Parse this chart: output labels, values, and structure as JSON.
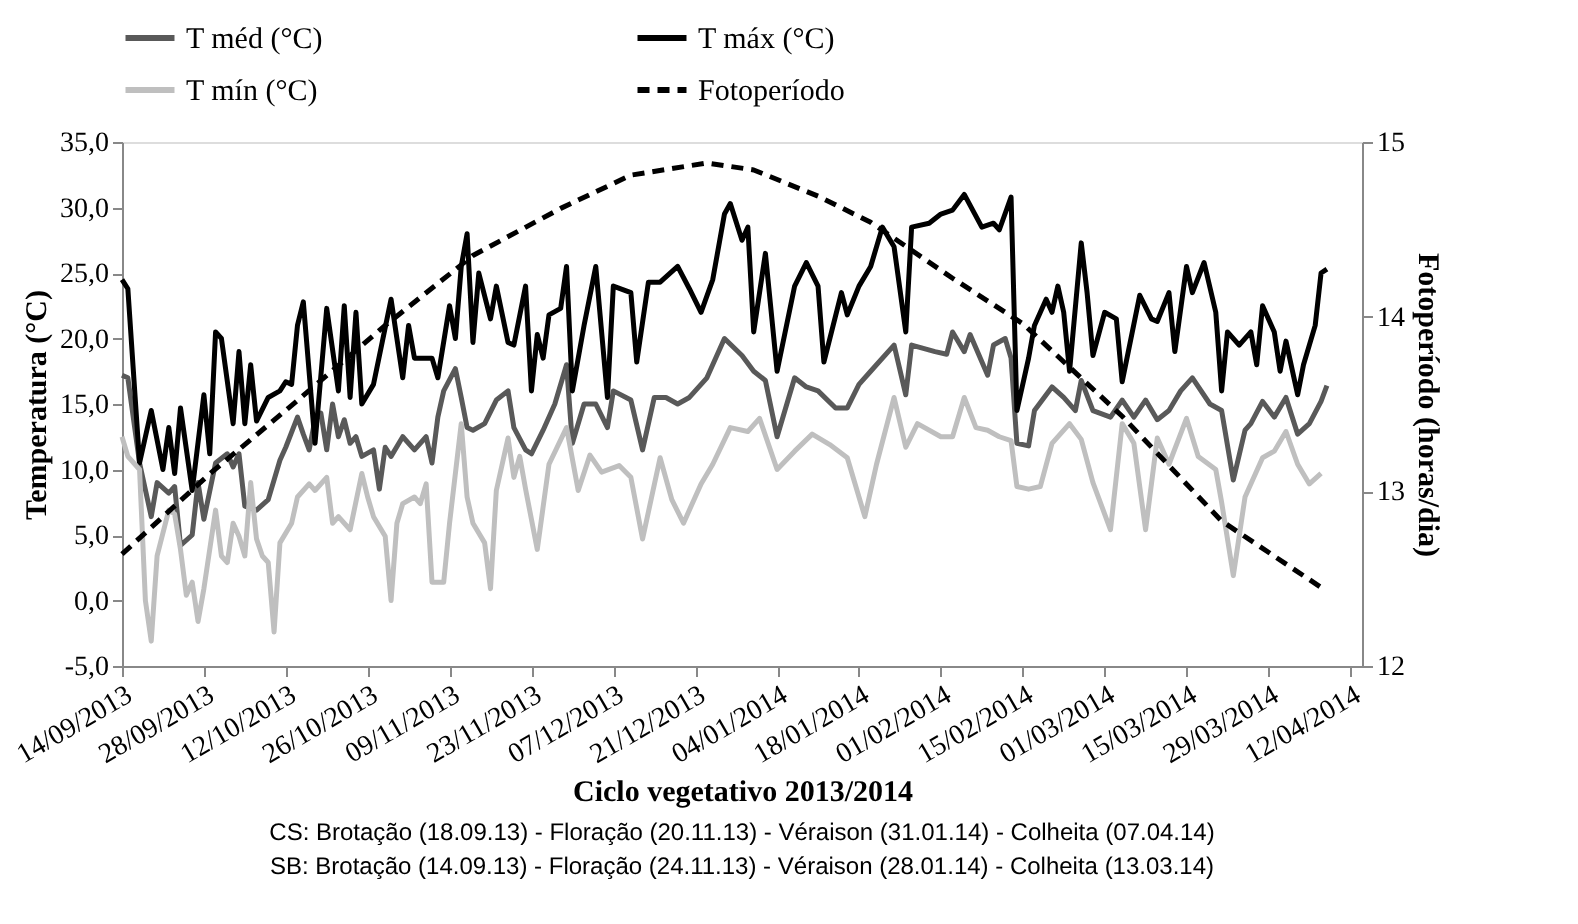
{
  "chart_data": {
    "type": "line",
    "xlabel": "Ciclo vegetativo 2013/2014",
    "ylabel": "Temperatura (°C)",
    "y2label": "Fotoperíodo (horas/dia)",
    "annotations": [
      "CS: Brotação (18.09.13)   -  Floração (20.11.13)   -   Véraison (31.01.14)   -   Colheita (07.04.14)",
      "SB: Brotação (14.09.13)   -  Floração (24.11.13)   -   Véraison (28.01.14)   -   Colheita (13.03.14)"
    ],
    "legend": "top",
    "grid": false,
    "xlim": [
      "2013-09-14",
      "2014-04-14"
    ],
    "xticks": [
      {
        "value": "2013-09-14",
        "label": "14/09/2013"
      },
      {
        "value": "2013-09-28",
        "label": "28/09/2013"
      },
      {
        "value": "2013-10-12",
        "label": "12/10/2013"
      },
      {
        "value": "2013-10-26",
        "label": "26/10/2013"
      },
      {
        "value": "2013-11-09",
        "label": "09/11/2013"
      },
      {
        "value": "2013-11-23",
        "label": "23/11/2013"
      },
      {
        "value": "2013-12-07",
        "label": "07/12/2013"
      },
      {
        "value": "2013-12-21",
        "label": "21/12/2013"
      },
      {
        "value": "2014-01-04",
        "label": "04/01/2014"
      },
      {
        "value": "2014-01-18",
        "label": "18/01/2014"
      },
      {
        "value": "2014-02-01",
        "label": "01/02/2014"
      },
      {
        "value": "2014-02-15",
        "label": "15/02/2014"
      },
      {
        "value": "2014-03-01",
        "label": "01/03/2014"
      },
      {
        "value": "2014-03-15",
        "label": "15/03/2014"
      },
      {
        "value": "2014-03-29",
        "label": "29/03/2014"
      },
      {
        "value": "2014-04-12",
        "label": "12/04/2014"
      }
    ],
    "ylim": [
      -5,
      35
    ],
    "yticks": [
      {
        "value": -5,
        "label": "-5,0"
      },
      {
        "value": 0,
        "label": "0,0"
      },
      {
        "value": 5,
        "label": "5,0"
      },
      {
        "value": 10,
        "label": "10,0"
      },
      {
        "value": 15,
        "label": "15,0"
      },
      {
        "value": 20,
        "label": "20,0"
      },
      {
        "value": 25,
        "label": "25,0"
      },
      {
        "value": 30,
        "label": "30,0"
      },
      {
        "value": 35,
        "label": "35,0"
      }
    ],
    "y2lim": [
      12,
      15
    ],
    "y2ticks": [
      12,
      13,
      14,
      15
    ],
    "series": [
      {
        "name": "T méd (°C)",
        "color": "#595959",
        "line_style": "solid",
        "x": [
          "2013-09-14",
          "2013-09-15",
          "2013-09-17",
          "2013-09-19",
          "2013-09-20",
          "2013-09-22",
          "2013-09-23",
          "2013-09-24",
          "2013-09-26",
          "2013-09-27",
          "2013-09-28",
          "2013-09-30",
          "2013-10-02",
          "2013-10-03",
          "2013-10-04",
          "2013-10-05",
          "2013-10-07",
          "2013-10-09",
          "2013-10-11",
          "2013-10-12",
          "2013-10-14",
          "2013-10-15",
          "2013-10-16",
          "2013-10-17",
          "2013-10-18",
          "2013-10-19",
          "2013-10-20",
          "2013-10-21",
          "2013-10-22",
          "2013-10-23",
          "2013-10-24",
          "2013-10-25",
          "2013-10-27",
          "2013-10-28",
          "2013-10-29",
          "2013-10-30",
          "2013-11-01",
          "2013-11-03",
          "2013-11-05",
          "2013-11-06",
          "2013-11-07",
          "2013-11-08",
          "2013-11-10",
          "2013-11-11",
          "2013-11-12",
          "2013-11-13",
          "2013-11-15",
          "2013-11-17",
          "2013-11-19",
          "2013-11-20",
          "2013-11-22",
          "2013-11-23",
          "2013-11-25",
          "2013-11-27",
          "2013-11-29",
          "2013-11-30",
          "2013-12-02",
          "2013-12-04",
          "2013-12-06",
          "2013-12-07",
          "2013-12-10",
          "2013-12-12",
          "2013-12-14",
          "2013-12-16",
          "2013-12-18",
          "2013-12-20",
          "2013-12-23",
          "2013-12-26",
          "2013-12-29",
          "2013-12-31",
          "2014-01-02",
          "2014-01-04",
          "2014-01-07",
          "2014-01-09",
          "2014-01-11",
          "2014-01-14",
          "2014-01-16",
          "2014-01-18",
          "2014-01-20",
          "2014-01-24",
          "2014-01-26",
          "2014-01-27",
          "2014-01-31",
          "2014-02-02",
          "2014-02-03",
          "2014-02-05",
          "2014-02-06",
          "2014-02-09",
          "2014-02-10",
          "2014-02-12",
          "2014-02-13",
          "2014-02-14",
          "2014-02-16",
          "2014-02-17",
          "2014-02-20",
          "2014-02-22",
          "2014-02-24",
          "2014-02-25",
          "2014-02-27",
          "2014-03-02",
          "2014-03-04",
          "2014-03-06",
          "2014-03-08",
          "2014-03-10",
          "2014-03-12",
          "2014-03-14",
          "2014-03-16",
          "2014-03-19",
          "2014-03-21",
          "2014-03-23",
          "2014-03-25",
          "2014-03-26",
          "2014-03-28",
          "2014-03-30",
          "2014-04-01",
          "2014-04-03",
          "2014-04-05",
          "2014-04-07",
          "2014-04-08"
        ],
        "values": [
          17.2,
          17.0,
          10.5,
          6.4,
          9.0,
          8.2,
          8.7,
          4.2,
          5.0,
          9.0,
          6.2,
          10.5,
          11.2,
          10.2,
          11.2,
          7.2,
          6.9,
          7.7,
          10.7,
          11.7,
          14.0,
          12.7,
          11.5,
          13.8,
          14.3,
          11.5,
          15.0,
          12.5,
          13.8,
          12.0,
          12.5,
          11.0,
          11.5,
          8.5,
          11.7,
          11.0,
          12.5,
          11.5,
          12.5,
          10.5,
          14.0,
          16.0,
          17.7,
          15.5,
          13.2,
          13.0,
          13.5,
          15.3,
          16.0,
          13.2,
          11.5,
          11.2,
          13.0,
          15.0,
          18.0,
          12.0,
          15.0,
          15.0,
          13.2,
          16.0,
          15.3,
          11.5,
          15.5,
          15.5,
          15.0,
          15.5,
          17.0,
          20.0,
          18.7,
          17.5,
          16.8,
          12.5,
          17.0,
          16.3,
          16.0,
          14.7,
          14.7,
          16.5,
          17.5,
          19.5,
          15.7,
          19.5,
          19.0,
          18.8,
          20.5,
          19.0,
          20.3,
          17.2,
          19.5,
          20.0,
          18.5,
          12.0,
          11.8,
          14.5,
          16.3,
          15.5,
          14.5,
          16.8,
          14.5,
          14.0,
          15.3,
          14.0,
          15.3,
          13.8,
          14.5,
          16.0,
          17.0,
          15.0,
          14.5,
          9.2,
          13.0,
          13.5,
          15.2,
          14.0,
          15.5,
          12.7,
          13.5,
          15.2,
          16.4
        ]
      },
      {
        "name": "T máx (°C)",
        "color": "#000000",
        "line_style": "solid",
        "x": [
          "2013-09-14",
          "2013-09-15",
          "2013-09-17",
          "2013-09-19",
          "2013-09-21",
          "2013-09-22",
          "2013-09-23",
          "2013-09-24",
          "2013-09-26",
          "2013-09-28",
          "2013-09-29",
          "2013-09-30",
          "2013-10-01",
          "2013-10-03",
          "2013-10-04",
          "2013-10-05",
          "2013-10-06",
          "2013-10-07",
          "2013-10-09",
          "2013-10-11",
          "2013-10-12",
          "2013-10-13",
          "2013-10-14",
          "2013-10-15",
          "2013-10-17",
          "2013-10-19",
          "2013-10-21",
          "2013-10-22",
          "2013-10-23",
          "2013-10-24",
          "2013-10-25",
          "2013-10-27",
          "2013-10-30",
          "2013-11-01",
          "2013-11-02",
          "2013-11-03",
          "2013-11-06",
          "2013-11-07",
          "2013-11-09",
          "2013-11-10",
          "2013-11-11",
          "2013-11-12",
          "2013-11-13",
          "2013-11-14",
          "2013-11-16",
          "2013-11-17",
          "2013-11-19",
          "2013-11-20",
          "2013-11-22",
          "2013-11-23",
          "2013-11-24",
          "2013-11-25",
          "2013-11-26",
          "2013-11-28",
          "2013-11-29",
          "2013-11-30",
          "2013-12-02",
          "2013-12-04",
          "2013-12-06",
          "2013-12-07",
          "2013-12-10",
          "2013-12-11",
          "2013-12-13",
          "2013-12-15",
          "2013-12-18",
          "2013-12-20",
          "2013-12-22",
          "2013-12-24",
          "2013-12-26",
          "2013-12-27",
          "2013-12-29",
          "2013-12-30",
          "2013-12-31",
          "2014-01-02",
          "2014-01-04",
          "2014-01-07",
          "2014-01-09",
          "2014-01-11",
          "2014-01-12",
          "2014-01-15",
          "2014-01-16",
          "2014-01-18",
          "2014-01-20",
          "2014-01-22",
          "2014-01-24",
          "2014-01-26",
          "2014-01-27",
          "2014-01-30",
          "2014-02-01",
          "2014-02-03",
          "2014-02-05",
          "2014-02-08",
          "2014-02-10",
          "2014-02-11",
          "2014-02-13",
          "2014-02-14",
          "2014-02-16",
          "2014-02-17",
          "2014-02-19",
          "2014-02-20",
          "2014-02-21",
          "2014-02-22",
          "2014-02-23",
          "2014-02-25",
          "2014-02-26",
          "2014-02-27",
          "2014-03-01",
          "2014-03-03",
          "2014-03-04",
          "2014-03-07",
          "2014-03-09",
          "2014-03-10",
          "2014-03-12",
          "2014-03-13",
          "2014-03-15",
          "2014-03-16",
          "2014-03-18",
          "2014-03-20",
          "2014-03-21",
          "2014-03-22",
          "2014-03-24",
          "2014-03-26",
          "2014-03-27",
          "2014-03-28",
          "2014-03-30",
          "2014-03-31",
          "2014-04-01",
          "2014-04-03",
          "2014-04-04",
          "2014-04-06",
          "2014-04-07",
          "2014-04-08"
        ],
        "values": [
          24.5,
          23.8,
          10.5,
          14.5,
          10.0,
          13.2,
          9.7,
          14.7,
          8.4,
          15.7,
          11.2,
          20.5,
          20.0,
          13.5,
          19.0,
          13.5,
          18.0,
          13.7,
          15.5,
          16.0,
          16.7,
          16.5,
          21.0,
          22.8,
          12.0,
          22.3,
          16.0,
          22.5,
          15.5,
          22.0,
          15.0,
          16.5,
          23.0,
          17.0,
          21.0,
          18.5,
          18.5,
          17.0,
          22.5,
          20.0,
          25.5,
          28.0,
          19.7,
          25.0,
          21.5,
          24.0,
          19.7,
          19.5,
          24.0,
          16.0,
          20.3,
          18.5,
          21.8,
          22.3,
          25.5,
          16.0,
          21.0,
          25.5,
          15.5,
          24.0,
          23.5,
          18.2,
          24.3,
          24.3,
          25.5,
          23.8,
          22.0,
          24.5,
          29.5,
          30.3,
          27.5,
          28.5,
          20.5,
          26.5,
          17.5,
          24.0,
          25.8,
          24.0,
          18.2,
          23.5,
          21.8,
          24.0,
          25.5,
          28.5,
          27.0,
          20.5,
          28.5,
          28.8,
          29.5,
          29.8,
          31.0,
          28.5,
          28.8,
          28.3,
          30.8,
          14.5,
          18.5,
          21.0,
          23.0,
          22.0,
          24.0,
          22.0,
          17.5,
          27.3,
          23.5,
          18.7,
          22.0,
          21.5,
          16.7,
          23.3,
          21.5,
          21.3,
          23.5,
          19.0,
          25.5,
          23.5,
          25.8,
          22.0,
          16.0,
          20.5,
          19.5,
          20.5,
          18.0,
          22.5,
          20.5,
          17.5,
          19.8,
          15.7,
          18.0,
          21.0,
          25.0,
          25.3
        ]
      },
      {
        "name": "T mín (°C)",
        "color": "#bfbfbf",
        "line_style": "solid",
        "x": [
          "2013-09-14",
          "2013-09-15",
          "2013-09-17",
          "2013-09-18",
          "2013-09-19",
          "2013-09-20",
          "2013-09-22",
          "2013-09-23",
          "2013-09-24",
          "2013-09-25",
          "2013-09-26",
          "2013-09-27",
          "2013-09-28",
          "2013-09-30",
          "2013-10-01",
          "2013-10-02",
          "2013-10-03",
          "2013-10-04",
          "2013-10-05",
          "2013-10-06",
          "2013-10-07",
          "2013-10-08",
          "2013-10-09",
          "2013-10-10",
          "2013-10-11",
          "2013-10-13",
          "2013-10-14",
          "2013-10-16",
          "2013-10-17",
          "2013-10-19",
          "2013-10-20",
          "2013-10-21",
          "2013-10-23",
          "2013-10-25",
          "2013-10-26",
          "2013-10-27",
          "2013-10-29",
          "2013-10-30",
          "2013-10-31",
          "2013-11-01",
          "2013-11-03",
          "2013-11-04",
          "2013-11-05",
          "2013-11-06",
          "2013-11-08",
          "2013-11-09",
          "2013-11-11",
          "2013-11-12",
          "2013-11-13",
          "2013-11-15",
          "2013-11-16",
          "2013-11-17",
          "2013-11-19",
          "2013-11-20",
          "2013-11-21",
          "2013-11-22",
          "2013-11-24",
          "2013-11-26",
          "2013-11-29",
          "2013-12-01",
          "2013-12-03",
          "2013-12-05",
          "2013-12-08",
          "2013-12-10",
          "2013-12-12",
          "2013-12-15",
          "2013-12-17",
          "2013-12-19",
          "2013-12-22",
          "2013-12-24",
          "2013-12-27",
          "2013-12-30",
          "2014-01-01",
          "2014-01-04",
          "2014-01-07",
          "2014-01-10",
          "2014-01-13",
          "2014-01-16",
          "2014-01-19",
          "2014-01-21",
          "2014-01-24",
          "2014-01-26",
          "2014-01-28",
          "2014-02-01",
          "2014-02-03",
          "2014-02-05",
          "2014-02-07",
          "2014-02-09",
          "2014-02-11",
          "2014-02-13",
          "2014-02-14",
          "2014-02-16",
          "2014-02-18",
          "2014-02-20",
          "2014-02-23",
          "2014-02-25",
          "2014-02-27",
          "2014-03-02",
          "2014-03-04",
          "2014-03-06",
          "2014-03-08",
          "2014-03-10",
          "2014-03-12",
          "2014-03-15",
          "2014-03-17",
          "2014-03-20",
          "2014-03-21",
          "2014-03-23",
          "2014-03-25",
          "2014-03-28",
          "2014-03-30",
          "2014-04-01",
          "2014-04-03",
          "2014-04-05",
          "2014-04-07"
        ],
        "values": [
          12.5,
          11.0,
          10.0,
          0.0,
          -3.1,
          3.4,
          6.9,
          6.6,
          3.9,
          0.4,
          1.4,
          -1.6,
          0.9,
          6.9,
          3.4,
          2.9,
          5.9,
          4.9,
          3.4,
          9.0,
          4.7,
          3.4,
          2.9,
          -2.4,
          4.4,
          5.9,
          7.9,
          8.9,
          8.4,
          9.4,
          5.9,
          6.4,
          5.4,
          9.7,
          7.9,
          6.4,
          4.9,
          0.0,
          5.9,
          7.4,
          7.9,
          7.4,
          8.9,
          1.4,
          1.4,
          5.9,
          13.5,
          7.9,
          5.9,
          4.4,
          0.9,
          8.4,
          12.4,
          9.4,
          11.0,
          8.5,
          3.9,
          10.4,
          13.2,
          8.4,
          11.1,
          9.8,
          10.3,
          9.4,
          4.7,
          10.9,
          7.7,
          5.9,
          8.9,
          10.4,
          13.2,
          12.9,
          13.9,
          10.0,
          11.4,
          12.7,
          11.9,
          10.9,
          6.4,
          10.4,
          15.5,
          11.7,
          13.5,
          12.5,
          12.5,
          15.5,
          13.2,
          13.0,
          12.5,
          12.2,
          8.7,
          8.5,
          8.7,
          12.0,
          13.5,
          12.3,
          9.0,
          5.4,
          13.5,
          12.0,
          5.4,
          12.4,
          10.4,
          13.9,
          11.0,
          10.0,
          7.5,
          1.9,
          7.9,
          10.9,
          11.4,
          12.9,
          10.4,
          8.9,
          9.7
        ]
      },
      {
        "name": "Fotoperíodo",
        "color": "#000000",
        "line_style": "dashed",
        "axis": "y2",
        "x": [
          "2013-09-14",
          "2013-09-29",
          "2013-10-14",
          "2013-10-29",
          "2013-11-13",
          "2013-11-28",
          "2013-12-10",
          "2013-12-23",
          "2013-12-31",
          "2014-01-11",
          "2014-01-20",
          "2014-02-03",
          "2014-02-15",
          "2014-03-04",
          "2014-03-21",
          "2014-04-07"
        ],
        "values": [
          12.64,
          13.1,
          13.52,
          13.95,
          14.35,
          14.62,
          14.81,
          14.88,
          14.84,
          14.69,
          14.54,
          14.22,
          13.96,
          13.43,
          12.83,
          12.45
        ]
      }
    ]
  }
}
